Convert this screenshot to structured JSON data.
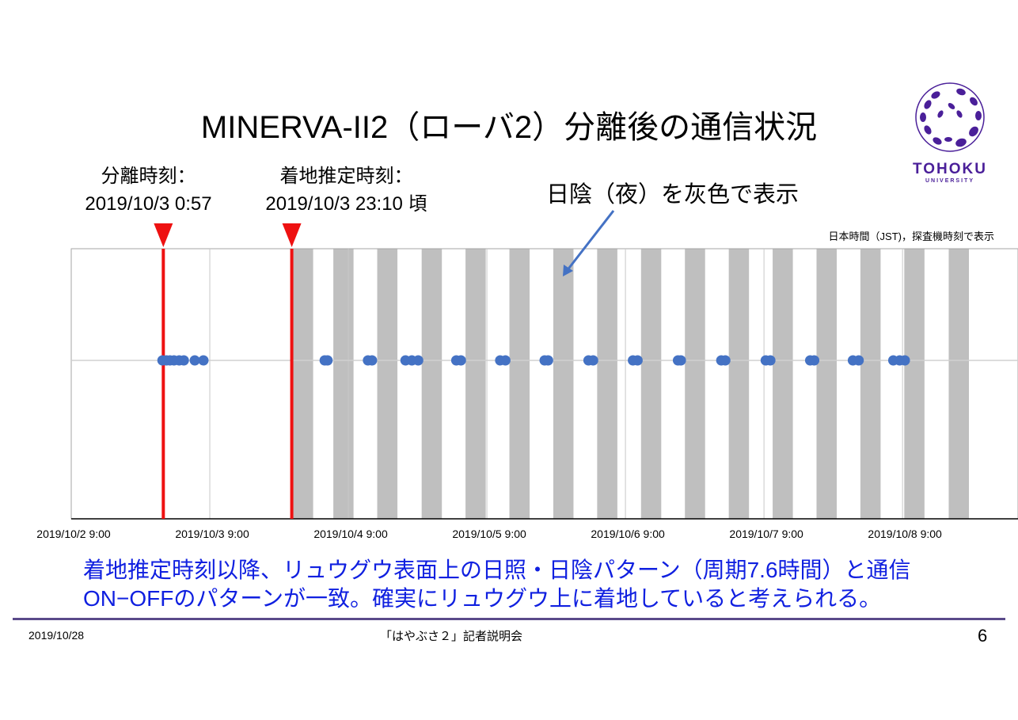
{
  "title": "MINERVA-II2（ローバ2）分離後の通信状況",
  "logo": {
    "name": "TOHOKU",
    "sub": "UNIVERSITY",
    "color": "#4a1f99"
  },
  "annotations": {
    "separation_label": "分離時刻：",
    "separation_time": "2019/10/3 0:57",
    "landing_label": "着地推定時刻：",
    "landing_time": "2019/10/3 23:10 頃",
    "night_note": "日陰（夜）を灰色で表示",
    "tz_note": "日本時間（JST)，探査機時刻で表示"
  },
  "chart_data": {
    "type": "scatter",
    "x_unit": "hours since 2019/10/2 9:00 JST",
    "xlim": [
      0,
      164
    ],
    "ticks": [
      {
        "hour": 0,
        "label": "2019/10/2 9:00"
      },
      {
        "hour": 24,
        "label": "2019/10/3 9:00"
      },
      {
        "hour": 48,
        "label": "2019/10/4 9:00"
      },
      {
        "hour": 72,
        "label": "2019/10/5 9:00"
      },
      {
        "hour": 96,
        "label": "2019/10/6 9:00"
      },
      {
        "hour": 120,
        "label": "2019/10/7 9:00"
      },
      {
        "hour": 144,
        "label": "2019/10/8 9:00"
      }
    ],
    "events": [
      {
        "name": "separation",
        "hour": 15.95
      },
      {
        "name": "landing",
        "hour": 38.2
      }
    ],
    "night_period_hours": 7.6,
    "night_duration_hours": 3.5,
    "night_starts": [
      38.4,
      45.4,
      53.0,
      60.7,
      68.3,
      75.9,
      83.5,
      91.1,
      98.7,
      106.3,
      113.9,
      121.5,
      129.1,
      136.7,
      144.3,
      152.0
    ],
    "comm_points": [
      15.8,
      16.5,
      17.1,
      17.8,
      18.7,
      19.5,
      21.4,
      22.9,
      43.9,
      44.4,
      51.4,
      52.1,
      57.9,
      59.0,
      60.1,
      66.7,
      67.5,
      74.3,
      75.2,
      82.0,
      82.6,
      89.6,
      90.4,
      97.3,
      98.1,
      105.1,
      105.6,
      112.6,
      113.3,
      120.3,
      121.1,
      128.0,
      128.7,
      135.4,
      136.4,
      142.4,
      143.5,
      144.4
    ],
    "colors": {
      "night": "#bfbfbf",
      "points": "#4472c4",
      "event": "#ee1111",
      "arrow": "#4472c4"
    }
  },
  "conclusion": [
    "着地推定時刻以降、リュウグウ表面上の日照・日陰パターン（周期7.6時間）と通信",
    "ON−OFFのパターンが一致。確実にリュウグウ上に着地していると考えられる。"
  ],
  "footer": {
    "date": "2019/10/28",
    "center": "「はやぶさ２」記者説明会",
    "page": "6"
  }
}
